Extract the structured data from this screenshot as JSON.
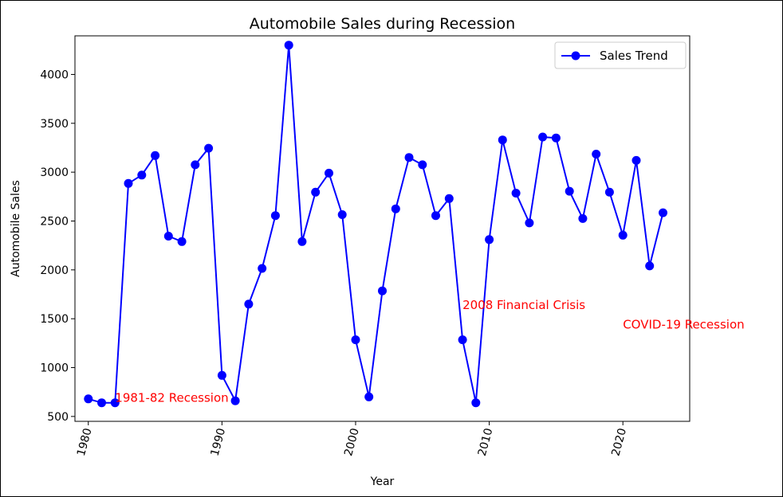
{
  "chart_data": {
    "type": "line",
    "title": "Automobile Sales during Recession",
    "xlabel": "Year",
    "ylabel": "Automobile Sales",
    "xlim": [
      1979,
      2025
    ],
    "ylim": [
      450,
      4395
    ],
    "x_ticks": [
      1980,
      1990,
      2000,
      2010,
      2020
    ],
    "y_ticks": [
      500,
      1000,
      1500,
      2000,
      2500,
      3000,
      3500,
      4000
    ],
    "grid": false,
    "legend_position": "top-right",
    "series": [
      {
        "name": "Sales Trend",
        "color": "#0000ff",
        "marker": "circle",
        "x": [
          1980,
          1981,
          1982,
          1983,
          1984,
          1985,
          1986,
          1987,
          1988,
          1989,
          1990,
          1991,
          1992,
          1993,
          1994,
          1995,
          1996,
          1997,
          1998,
          1999,
          2000,
          2001,
          2002,
          2003,
          2004,
          2005,
          2006,
          2007,
          2008,
          2009,
          2010,
          2011,
          2012,
          2013,
          2014,
          2015,
          2016,
          2017,
          2018,
          2019,
          2020,
          2021,
          2022,
          2023
        ],
        "y": [
          680,
          640,
          640,
          2885,
          2970,
          3170,
          2345,
          2290,
          3075,
          3245,
          920,
          660,
          1650,
          2015,
          2555,
          4300,
          2290,
          2795,
          2990,
          2565,
          1285,
          700,
          1785,
          2625,
          3150,
          3075,
          2555,
          2730,
          1285,
          640,
          2310,
          3330,
          2785,
          2480,
          3360,
          3350,
          2805,
          2525,
          3185,
          2795,
          2355,
          3120,
          2040,
          2585
        ]
      }
    ],
    "annotations": [
      {
        "text": "1981-82 Recession",
        "x": 1982,
        "y": 650,
        "color": "#ff0000"
      },
      {
        "text": "2008 Financial Crisis",
        "x": 2008,
        "y": 1600,
        "color": "#ff0000"
      },
      {
        "text": "COVID-19 Recession",
        "x": 2020,
        "y": 1400,
        "color": "#ff0000"
      }
    ]
  }
}
